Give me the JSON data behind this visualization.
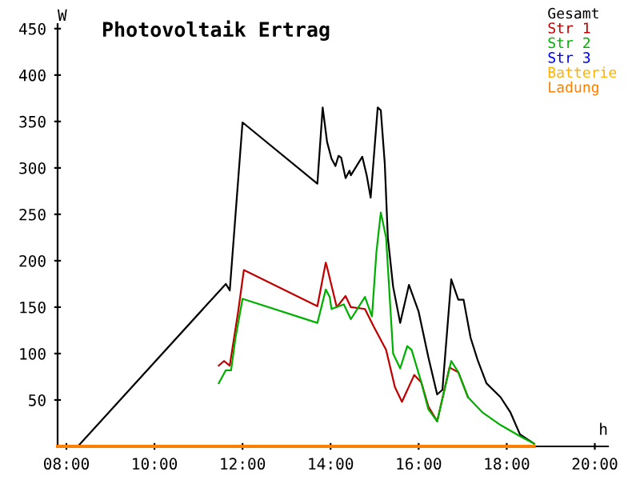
{
  "chart_data": {
    "type": "line",
    "title": "Photovoltaik Ertrag",
    "xlabel": "h",
    "ylabel": "W",
    "xlim": [
      7.8,
      20.3
    ],
    "xticks": [
      {
        "value": 8,
        "label": "08:00"
      },
      {
        "value": 10,
        "label": "10:00"
      },
      {
        "value": 12,
        "label": "12:00"
      },
      {
        "value": 14,
        "label": "14:00"
      },
      {
        "value": 16,
        "label": "16:00"
      },
      {
        "value": 18,
        "label": "18:00"
      },
      {
        "value": 20,
        "label": "20:00"
      }
    ],
    "ylim": [
      0,
      455
    ],
    "yticks": [
      50,
      100,
      150,
      200,
      250,
      300,
      350,
      400,
      450
    ],
    "grid": false,
    "legend": "top right",
    "marker": "none",
    "line_style": "solid",
    "series": [
      {
        "name": "Gesamt",
        "color": "#000000",
        "x": [
          8.26,
          11.62,
          11.71,
          12.0,
          13.7,
          13.82,
          13.92,
          14.02,
          14.11,
          14.18,
          14.24,
          14.34,
          14.43,
          14.46,
          14.72,
          14.82,
          14.91,
          15.07,
          15.14,
          15.23,
          15.3,
          15.42,
          15.58,
          15.78,
          16.0,
          16.22,
          16.42,
          16.54,
          16.74,
          16.9,
          17.02,
          17.18,
          17.34,
          17.54,
          17.86,
          18.08,
          18.3,
          18.62
        ],
        "values": [
          0,
          175,
          168,
          349,
          283,
          365,
          328,
          310,
          302,
          313,
          311,
          289,
          297,
          292,
          312,
          292,
          268,
          365,
          362,
          305,
          225,
          172,
          133,
          174,
          145,
          96,
          56,
          61,
          180,
          158,
          158,
          117,
          93,
          68,
          53,
          37,
          13,
          3
        ]
      },
      {
        "name": "Str 1",
        "color": "#c00000",
        "x": [
          11.46,
          11.58,
          11.71,
          11.9,
          12.03,
          13.7,
          13.89,
          13.92,
          14.14,
          14.34,
          14.46,
          14.78,
          14.98,
          15.26,
          15.46,
          15.62,
          15.9,
          16.06,
          16.22,
          16.42,
          16.7,
          16.9,
          17.12
        ],
        "values": [
          87,
          92,
          87,
          145,
          190,
          151,
          198,
          193,
          150,
          162,
          150,
          148,
          129,
          104,
          64,
          48,
          77,
          69,
          43,
          27,
          85,
          80,
          53
        ]
      },
      {
        "name": "Str 2",
        "color": "#00b000",
        "x": [
          11.46,
          11.62,
          11.74,
          11.84,
          12.0,
          13.7,
          13.89,
          13.98,
          14.02,
          14.3,
          14.46,
          14.78,
          14.94,
          15.04,
          15.14,
          15.26,
          15.42,
          15.58,
          15.74,
          15.84,
          16.06,
          16.22,
          16.42,
          16.74,
          16.9,
          17.12,
          17.44,
          17.86,
          18.3,
          18.62
        ],
        "values": [
          68,
          82,
          82,
          117,
          159,
          133,
          169,
          161,
          148,
          153,
          137,
          161,
          140,
          209,
          252,
          225,
          100,
          84,
          108,
          104,
          69,
          40,
          27,
          92,
          80,
          53,
          37,
          23,
          11,
          3
        ]
      },
      {
        "name": "Str 3",
        "color": "#0000ff"
      },
      {
        "name": "Batterie",
        "color": "#ffb000"
      },
      {
        "name": "Ladung",
        "color": "#ff8000",
        "x": [
          7.8,
          18.62
        ],
        "values": [
          0,
          0
        ]
      }
    ]
  }
}
